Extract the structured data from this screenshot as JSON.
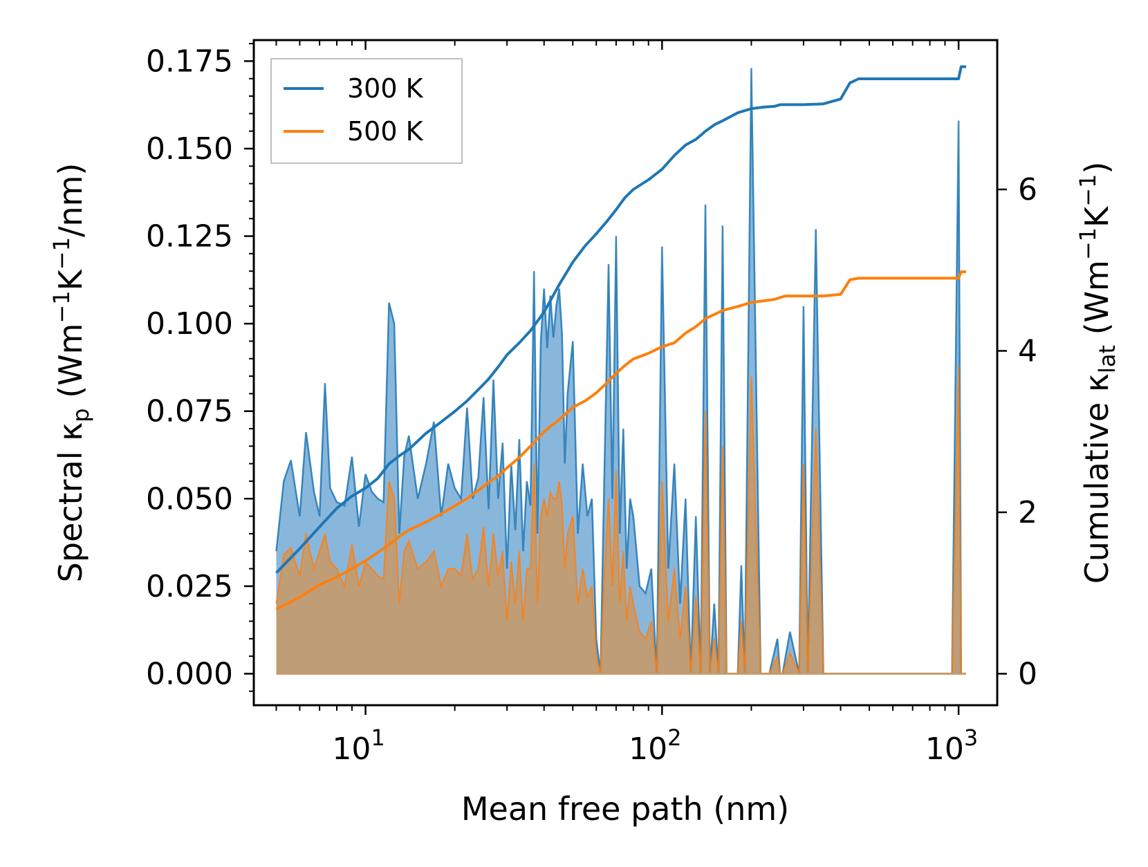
{
  "chart_data": {
    "type": "line",
    "title": "",
    "xlabel": "Mean free path (nm)",
    "xscale": "log",
    "xlim": [
      4.2,
      1350
    ],
    "x_ticks": [
      {
        "value": 10,
        "base": "10",
        "exp": "1"
      },
      {
        "value": 100,
        "base": "10",
        "exp": "2"
      },
      {
        "value": 1000,
        "base": "10",
        "exp": "3"
      }
    ],
    "ylabel_left": {
      "pre": "Spectral κ",
      "sub": "p",
      "unit_a": " (Wm",
      "sup1": "−1",
      "unit_b": "K",
      "sup2": "−1",
      "unit_c": "/nm)"
    },
    "ylim_left": [
      -0.009,
      0.181
    ],
    "y_ticks_left": [
      "0.000",
      "0.025",
      "0.050",
      "0.075",
      "0.100",
      "0.125",
      "0.150",
      "0.175"
    ],
    "ylabel_right": {
      "pre": "Cumulative κ",
      "sub": "lat",
      "unit_a": " (Wm",
      "sup1": "−1",
      "unit_b": "K",
      "sup2": "−1",
      "unit_c": ")"
    },
    "ylim_right": [
      -0.39,
      7.85
    ],
    "y_ticks_right": [
      "0",
      "2",
      "4",
      "6"
    ],
    "legend": {
      "position": "top-left",
      "entries": [
        "300 K",
        "500 K"
      ]
    },
    "colors": {
      "s300": "#1f77b4",
      "s500": "#ff7f0e",
      "fill300": "#74aad6",
      "fill500": "#c49a6c"
    },
    "spectral_300K": {
      "x": [
        5,
        5.3,
        5.6,
        6,
        6.3,
        6.7,
        7,
        7.3,
        7.6,
        8,
        8.5,
        9,
        9.5,
        10,
        10.5,
        11,
        11.5,
        12,
        12.5,
        13,
        13.5,
        14,
        15,
        16,
        17,
        18,
        19,
        20,
        21,
        22,
        23,
        24,
        25,
        26,
        27,
        28,
        29,
        30,
        31,
        32,
        33,
        34,
        35,
        36,
        37,
        38,
        39,
        40,
        41,
        42,
        43,
        44,
        45,
        46,
        47,
        48,
        50,
        52,
        54,
        56,
        58,
        60,
        62,
        64,
        66,
        68,
        70,
        72,
        74,
        76,
        78,
        80,
        84,
        88,
        92,
        96,
        100,
        105,
        110,
        115,
        120,
        125,
        130,
        135,
        140,
        145,
        150,
        155,
        160,
        165,
        170,
        175,
        180,
        185,
        190,
        200,
        215,
        230,
        245,
        250,
        255,
        270,
        290,
        300,
        310,
        330,
        350,
        370,
        380,
        390,
        400,
        410,
        420,
        430,
        440,
        460,
        500,
        600,
        800,
        950,
        1000,
        1020,
        1040,
        1060
      ],
      "y": [
        0.035,
        0.055,
        0.061,
        0.045,
        0.069,
        0.052,
        0.045,
        0.083,
        0.053,
        0.049,
        0.048,
        0.062,
        0.042,
        0.057,
        0.052,
        0.05,
        0.049,
        0.106,
        0.1,
        0.04,
        0.062,
        0.068,
        0.05,
        0.06,
        0.072,
        0.045,
        0.06,
        0.053,
        0.05,
        0.076,
        0.05,
        0.056,
        0.079,
        0.047,
        0.084,
        0.05,
        0.066,
        0.03,
        0.06,
        0.041,
        0.067,
        0.035,
        0.055,
        0.048,
        0.115,
        0.04,
        0.095,
        0.11,
        0.093,
        0.108,
        0.096,
        0.105,
        0.11,
        0.097,
        0.06,
        0.08,
        0.095,
        0.04,
        0.06,
        0.045,
        0.05,
        0.01,
        0.0,
        0.06,
        0.117,
        0.05,
        0.125,
        0.04,
        0.07,
        0.03,
        0.05,
        0.045,
        0.025,
        0.023,
        0.03,
        0.0,
        0.122,
        0.03,
        0.06,
        0.02,
        0.05,
        0.0,
        0.045,
        0.0,
        0.134,
        0.0,
        0.02,
        0.0,
        0.128,
        0.0,
        0.0,
        0.0,
        0.0,
        0.031,
        0.0,
        0.173,
        0.0,
        0.0,
        0.01,
        0.0,
        0.0,
        0.012,
        0.0,
        0.105,
        0.0,
        0.127,
        0.0,
        0.0,
        0.0,
        0.0,
        0.0,
        0.0,
        0.0,
        0.0,
        0.0,
        0.0,
        0.0,
        0.0,
        0.0,
        0.0,
        0.158,
        0.0,
        0.0,
        0.0
      ]
    },
    "spectral_500K": {
      "x": [
        5,
        5.3,
        5.6,
        6,
        6.3,
        6.7,
        7,
        7.3,
        7.6,
        8,
        8.5,
        9,
        9.5,
        10,
        10.5,
        11,
        11.5,
        12,
        12.5,
        13,
        13.5,
        14,
        15,
        16,
        17,
        18,
        19,
        20,
        21,
        22,
        23,
        24,
        25,
        26,
        27,
        28,
        29,
        30,
        31,
        32,
        33,
        34,
        35,
        36,
        37,
        38,
        39,
        40,
        41,
        42,
        43,
        44,
        45,
        46,
        47,
        48,
        50,
        52,
        54,
        56,
        58,
        60,
        62,
        64,
        66,
        68,
        70,
        72,
        74,
        76,
        78,
        80,
        84,
        88,
        92,
        96,
        100,
        105,
        110,
        115,
        120,
        125,
        130,
        135,
        140,
        145,
        150,
        155,
        160,
        165,
        170,
        175,
        180,
        185,
        190,
        200,
        215,
        230,
        245,
        250,
        255,
        270,
        290,
        300,
        310,
        330,
        350,
        370,
        380,
        390,
        400,
        410,
        420,
        430,
        440,
        460,
        500,
        600,
        800,
        950,
        1000,
        1020,
        1040,
        1060
      ],
      "y": [
        0.02,
        0.034,
        0.036,
        0.028,
        0.04,
        0.03,
        0.035,
        0.04,
        0.032,
        0.03,
        0.025,
        0.037,
        0.025,
        0.032,
        0.03,
        0.028,
        0.027,
        0.055,
        0.05,
        0.02,
        0.035,
        0.038,
        0.03,
        0.032,
        0.035,
        0.025,
        0.03,
        0.03,
        0.028,
        0.04,
        0.027,
        0.03,
        0.042,
        0.025,
        0.04,
        0.028,
        0.035,
        0.015,
        0.032,
        0.02,
        0.035,
        0.015,
        0.03,
        0.03,
        0.06,
        0.02,
        0.045,
        0.05,
        0.045,
        0.052,
        0.05,
        0.05,
        0.055,
        0.048,
        0.03,
        0.04,
        0.045,
        0.02,
        0.03,
        0.022,
        0.025,
        0.005,
        0.0,
        0.03,
        0.05,
        0.025,
        0.058,
        0.02,
        0.035,
        0.015,
        0.025,
        0.02,
        0.012,
        0.01,
        0.015,
        0.0,
        0.055,
        0.015,
        0.03,
        0.01,
        0.025,
        0.0,
        0.022,
        0.0,
        0.075,
        0.0,
        0.01,
        0.0,
        0.065,
        0.0,
        0.0,
        0.0,
        0.0,
        0.015,
        0.0,
        0.085,
        0.0,
        0.0,
        0.005,
        0.0,
        0.0,
        0.006,
        0.0,
        0.06,
        0.0,
        0.07,
        0.0,
        0.0,
        0.0,
        0.0,
        0.0,
        0.0,
        0.0,
        0.0,
        0.0,
        0.0,
        0.0,
        0.0,
        0.0,
        0.0,
        0.088,
        0.0,
        0.0,
        0.0
      ]
    },
    "cumulative_300K": {
      "x": [
        5,
        6,
        7,
        8,
        9,
        10,
        11,
        12,
        13,
        14,
        16,
        18,
        20,
        22,
        24,
        26,
        28,
        30,
        33,
        36,
        40,
        45,
        50,
        55,
        60,
        65,
        70,
        75,
        80,
        90,
        100,
        110,
        120,
        130,
        140,
        150,
        160,
        180,
        200,
        220,
        240,
        250,
        260,
        300,
        350,
        400,
        430,
        460,
        500,
        600,
        700,
        800,
        900,
        1000,
        1020,
        1060
      ],
      "y": [
        1.25,
        1.55,
        1.82,
        2.05,
        2.2,
        2.3,
        2.42,
        2.6,
        2.7,
        2.78,
        2.98,
        3.12,
        3.25,
        3.38,
        3.52,
        3.65,
        3.8,
        3.95,
        4.1,
        4.25,
        4.48,
        4.82,
        5.1,
        5.3,
        5.45,
        5.6,
        5.75,
        5.9,
        6.0,
        6.12,
        6.25,
        6.42,
        6.55,
        6.62,
        6.72,
        6.8,
        6.85,
        6.95,
        7.0,
        7.02,
        7.03,
        7.05,
        7.05,
        7.05,
        7.06,
        7.12,
        7.32,
        7.37,
        7.37,
        7.37,
        7.37,
        7.37,
        7.37,
        7.37,
        7.52,
        7.52
      ]
    },
    "cumulative_500K": {
      "x": [
        5,
        6,
        7,
        8,
        9,
        10,
        11,
        12,
        13,
        14,
        16,
        18,
        20,
        22,
        24,
        26,
        28,
        30,
        33,
        36,
        40,
        45,
        50,
        55,
        60,
        65,
        70,
        75,
        80,
        90,
        100,
        110,
        120,
        130,
        140,
        150,
        160,
        180,
        200,
        220,
        240,
        250,
        260,
        300,
        350,
        400,
        430,
        460,
        500,
        600,
        700,
        800,
        900,
        1000,
        1020,
        1060
      ],
      "y": [
        0.8,
        0.95,
        1.1,
        1.2,
        1.3,
        1.4,
        1.5,
        1.6,
        1.7,
        1.78,
        1.88,
        1.98,
        2.08,
        2.17,
        2.27,
        2.37,
        2.45,
        2.55,
        2.68,
        2.82,
        3.0,
        3.15,
        3.3,
        3.38,
        3.48,
        3.6,
        3.72,
        3.82,
        3.9,
        3.97,
        4.05,
        4.1,
        4.22,
        4.3,
        4.4,
        4.45,
        4.5,
        4.55,
        4.6,
        4.62,
        4.64,
        4.66,
        4.68,
        4.68,
        4.68,
        4.7,
        4.88,
        4.9,
        4.9,
        4.9,
        4.9,
        4.9,
        4.9,
        4.9,
        4.98,
        4.98
      ]
    }
  }
}
